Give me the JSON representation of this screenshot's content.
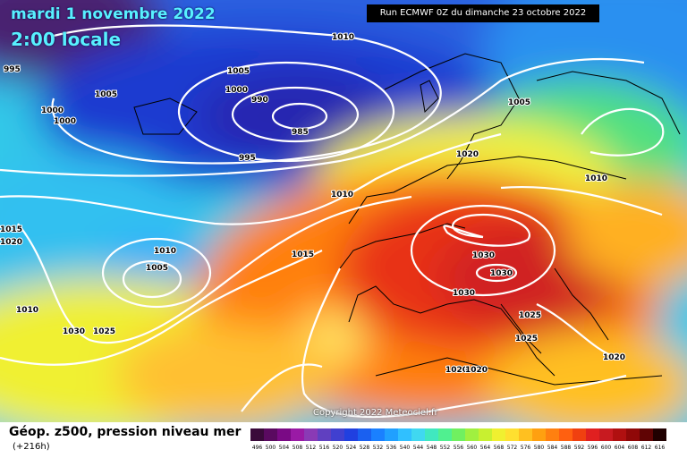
{
  "header": {
    "date": "mardi 1 novembre 2022",
    "time": "2:00 locale",
    "run": "Run ECMWF 0Z du dimanche 23 octobre 2022"
  },
  "copyright": "Copyright 2022 Meteociel.fr",
  "footer": {
    "title": "Géop. z500, pression niveau mer",
    "subtitle": "(+216h)"
  },
  "legend": {
    "values": [
      "496",
      "500",
      "504",
      "508",
      "512",
      "516",
      "520",
      "524",
      "528",
      "532",
      "536",
      "540",
      "544",
      "548",
      "552",
      "556",
      "560",
      "564",
      "568",
      "572",
      "576",
      "580",
      "584",
      "588",
      "592",
      "596",
      "600",
      "604",
      "608",
      "612",
      "616"
    ],
    "colors": [
      "#3a0a3a",
      "#5a0a60",
      "#7a0a85",
      "#9a1aa5",
      "#8a3ab5",
      "#6040c0",
      "#4040d0",
      "#2040e0",
      "#1a60f0",
      "#1a80ff",
      "#20a0ff",
      "#30c0ff",
      "#40d8f0",
      "#40e8c0",
      "#50f090",
      "#70f060",
      "#a0f040",
      "#c8f030",
      "#f0f030",
      "#ffe030",
      "#ffc020",
      "#ffa010",
      "#ff8010",
      "#ff6010",
      "#f04010",
      "#e02020",
      "#c81a20",
      "#b01010",
      "#900808",
      "#600404",
      "#200000"
    ]
  },
  "map_labels": {
    "isobars": [
      "995",
      "1005",
      "1000",
      "1000",
      "1010",
      "1005",
      "1000",
      "990",
      "985",
      "995",
      "1005",
      "1020",
      "1010",
      "1010",
      "1010",
      "1015",
      "1020",
      "1015",
      "1010",
      "1005",
      "1030",
      "1030",
      "1030",
      "1030",
      "1025",
      "1025",
      "1025",
      "1020",
      "1020",
      "1020",
      "1025",
      "1020"
    ],
    "colors": {
      "title": "#58f0ff",
      "isobar": "#ffffff",
      "coast": "#000000"
    }
  }
}
